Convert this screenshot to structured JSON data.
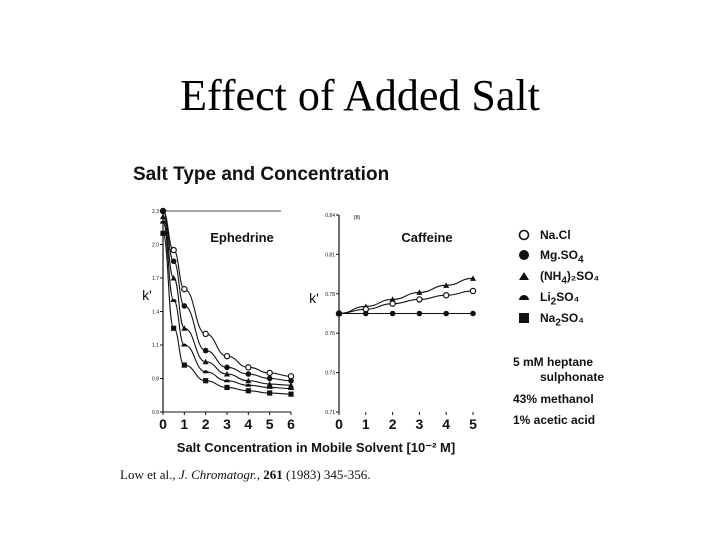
{
  "slide": {
    "title": "Effect of Added Salt"
  },
  "figure": {
    "heading": "Salt Type and Concentration",
    "conditions": [
      "5 mM heptane",
      "sulphonate",
      "43% methanol",
      "1% acetic acid"
    ],
    "citation": {
      "authors": "Low et al.,",
      "journal": "J. Chromatogr.,",
      "volume": "261",
      "rest": "(1983) 345-356."
    }
  },
  "legend": [
    {
      "label_main": "Na.Cl",
      "sub": "",
      "tail": "",
      "marker": "open-circle-icon"
    },
    {
      "label_main": "Mg.SO",
      "sub": "4",
      "tail": "",
      "marker": "filled-circle-icon"
    },
    {
      "label_main": "(NH",
      "sub": "4",
      "tail": ")₂SO₄",
      "marker": "triangle-icon"
    },
    {
      "label_main": "Li",
      "sub": "2",
      "tail": "SO₄",
      "marker": "half-circle-icon"
    },
    {
      "label_main": "Na",
      "sub": "2",
      "tail": "SO₄",
      "marker": "filled-square-icon"
    }
  ],
  "chart_data": [
    {
      "type": "line",
      "title": "Ephedrine",
      "xlabel": "Salt Concentration in Mobile Solvent [10⁻² M]",
      "ylabel": "k'",
      "xlim": [
        0,
        6
      ],
      "x_ticks": [
        "0",
        "1",
        "2",
        "3",
        "4",
        "5",
        "6"
      ],
      "ylim": [
        0.5,
        2.3
      ],
      "y_ticks": [
        "2.3",
        "2.0",
        "1.7",
        "1.4",
        "1.1",
        "0.8",
        "0.5"
      ],
      "series": [
        {
          "marker": "open-circle-icon",
          "x": [
            0,
            0.5,
            1,
            2,
            3,
            4,
            5,
            6
          ],
          "y": [
            2.3,
            1.95,
            1.6,
            1.2,
            1.0,
            0.9,
            0.85,
            0.82
          ]
        },
        {
          "marker": "filled-circle-icon",
          "x": [
            0,
            0.5,
            1,
            2,
            3,
            4,
            5,
            6
          ],
          "y": [
            2.3,
            1.85,
            1.45,
            1.05,
            0.9,
            0.84,
            0.8,
            0.78
          ]
        },
        {
          "marker": "triangle-icon",
          "x": [
            0,
            0.5,
            1,
            2,
            3,
            4,
            5,
            6
          ],
          "y": [
            2.25,
            1.7,
            1.25,
            0.95,
            0.84,
            0.78,
            0.75,
            0.74
          ]
        },
        {
          "marker": "half-circle-icon",
          "x": [
            0,
            0.5,
            1,
            2,
            3,
            4,
            5,
            6
          ],
          "y": [
            2.2,
            1.5,
            1.1,
            0.86,
            0.78,
            0.74,
            0.72,
            0.71
          ]
        },
        {
          "marker": "filled-square-icon",
          "x": [
            0,
            0.5,
            1,
            2,
            3,
            4,
            5,
            6
          ],
          "y": [
            2.1,
            1.25,
            0.92,
            0.78,
            0.72,
            0.69,
            0.67,
            0.66
          ]
        }
      ]
    },
    {
      "type": "line",
      "title": "Caffeine",
      "panel_label": "(B)",
      "xlabel": "",
      "ylabel": "k'",
      "xlim": [
        0,
        5
      ],
      "x_ticks": [
        "0",
        "1",
        "2",
        "3",
        "4",
        "5"
      ],
      "ylim": [
        0.7,
        0.84
      ],
      "y_ticks": [
        "0.84",
        "0.81",
        "0.78",
        "0.75",
        "0.73",
        "0.71"
      ],
      "series": [
        {
          "marker": "triangle-icon",
          "x": [
            0,
            1,
            2,
            3,
            4,
            5
          ],
          "y": [
            0.77,
            0.775,
            0.78,
            0.785,
            0.79,
            0.795
          ]
        },
        {
          "marker": "open-circle-icon",
          "x": [
            0,
            1,
            2,
            3,
            4,
            5
          ],
          "y": [
            0.77,
            0.773,
            0.777,
            0.78,
            0.783,
            0.786
          ]
        },
        {
          "marker": "filled-circle-icon",
          "x": [
            0,
            1,
            2,
            3,
            4,
            5
          ],
          "y": [
            0.77,
            0.77,
            0.77,
            0.77,
            0.77,
            0.77
          ]
        }
      ]
    }
  ]
}
